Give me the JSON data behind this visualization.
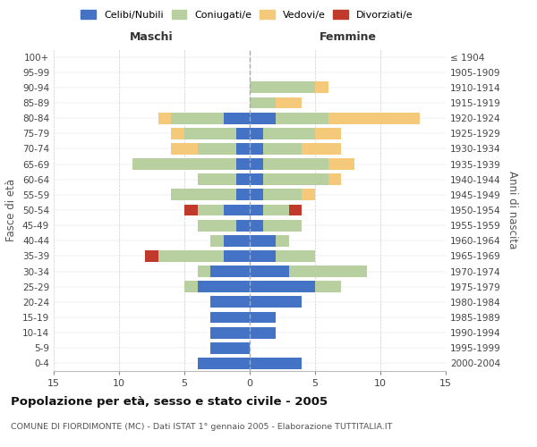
{
  "age_groups": [
    "100+",
    "95-99",
    "90-94",
    "85-89",
    "80-84",
    "75-79",
    "70-74",
    "65-69",
    "60-64",
    "55-59",
    "50-54",
    "45-49",
    "40-44",
    "35-39",
    "30-34",
    "25-29",
    "20-24",
    "15-19",
    "10-14",
    "5-9",
    "0-4"
  ],
  "birth_years": [
    "≤ 1904",
    "1905-1909",
    "1910-1914",
    "1915-1919",
    "1920-1924",
    "1925-1929",
    "1930-1934",
    "1935-1939",
    "1940-1944",
    "1945-1949",
    "1950-1954",
    "1955-1959",
    "1960-1964",
    "1965-1969",
    "1970-1974",
    "1975-1979",
    "1980-1984",
    "1985-1989",
    "1990-1994",
    "1995-1999",
    "2000-2004"
  ],
  "colors": {
    "celibi": "#4472c4",
    "coniugati": "#b8cfa0",
    "vedovi": "#f5c97a",
    "divorziati": "#c0392b"
  },
  "males": {
    "celibi": [
      0,
      0,
      0,
      0,
      2,
      1,
      1,
      1,
      1,
      1,
      2,
      1,
      2,
      2,
      3,
      4,
      3,
      3,
      3,
      3,
      4
    ],
    "coniugati": [
      0,
      0,
      0,
      0,
      4,
      4,
      3,
      8,
      3,
      5,
      2,
      3,
      1,
      5,
      1,
      1,
      0,
      0,
      0,
      0,
      0
    ],
    "vedovi": [
      0,
      0,
      0,
      0,
      1,
      1,
      2,
      0,
      0,
      0,
      0,
      0,
      0,
      0,
      0,
      0,
      0,
      0,
      0,
      0,
      0
    ],
    "divorziati": [
      0,
      0,
      0,
      0,
      0,
      0,
      0,
      0,
      0,
      0,
      1,
      0,
      0,
      1,
      0,
      0,
      0,
      0,
      0,
      0,
      0
    ]
  },
  "females": {
    "celibi": [
      0,
      0,
      0,
      0,
      2,
      1,
      1,
      1,
      1,
      1,
      1,
      1,
      2,
      2,
      3,
      5,
      4,
      2,
      2,
      0,
      4
    ],
    "coniugati": [
      0,
      0,
      5,
      2,
      4,
      4,
      3,
      5,
      5,
      3,
      2,
      3,
      1,
      3,
      6,
      2,
      0,
      0,
      0,
      0,
      0
    ],
    "vedovi": [
      0,
      0,
      1,
      2,
      7,
      2,
      3,
      2,
      1,
      1,
      0,
      0,
      0,
      0,
      0,
      0,
      0,
      0,
      0,
      0,
      0
    ],
    "divorziati": [
      0,
      0,
      0,
      0,
      0,
      0,
      0,
      0,
      0,
      0,
      1,
      0,
      0,
      0,
      0,
      0,
      0,
      0,
      0,
      0,
      0
    ]
  },
  "title": "Popolazione per età, sesso e stato civile - 2005",
  "subtitle": "COMUNE DI FIORDIMONTE (MC) - Dati ISTAT 1° gennaio 2005 - Elaborazione TUTTITALIA.IT",
  "xlabel_left": "Maschi",
  "xlabel_right": "Femmine",
  "ylabel_left": "Fasce di età",
  "ylabel_right": "Anni di nascita",
  "xlim": 15,
  "legend_labels": [
    "Celibi/Nubili",
    "Coniugati/e",
    "Vedovi/e",
    "Divorziati/e"
  ],
  "background_color": "#ffffff"
}
